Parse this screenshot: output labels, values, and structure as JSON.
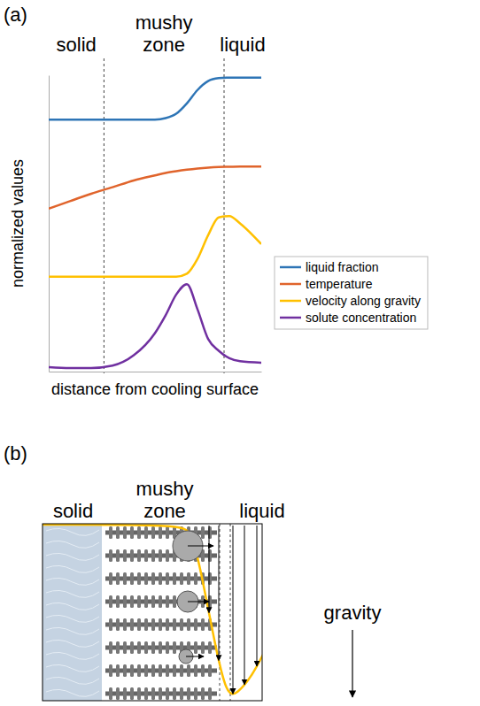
{
  "chart_data": {
    "type": "line",
    "panel_label": "(a)",
    "zones": [
      "solid",
      "mushy zone",
      "liquid"
    ],
    "zone_bounds": [
      2.6,
      8.25
    ],
    "x_label": "distance from cooling surface",
    "y_label": "normalized values",
    "x": [
      0,
      1,
      2,
      3,
      4,
      5,
      5.5,
      6,
      6.5,
      7,
      7.5,
      8,
      8.5,
      9,
      10
    ],
    "series": [
      {
        "name": "liquid fraction",
        "color": "#2e75b6",
        "values": [
          8.5,
          8.5,
          8.5,
          8.5,
          8.5,
          8.5,
          8.55,
          8.7,
          9.05,
          9.5,
          9.8,
          9.9,
          9.92,
          9.92,
          9.92
        ]
      },
      {
        "name": "temperature",
        "color": "#e0642c",
        "values": [
          5.5,
          5.75,
          6.0,
          6.22,
          6.45,
          6.62,
          6.7,
          6.76,
          6.81,
          6.85,
          6.88,
          6.9,
          6.91,
          6.92,
          6.92
        ]
      },
      {
        "name": "velocity along gravity",
        "color": "#ffc000",
        "values": [
          3.2,
          3.2,
          3.2,
          3.2,
          3.2,
          3.2,
          3.2,
          3.2,
          3.3,
          3.8,
          4.6,
          5.2,
          5.25,
          5.0,
          4.3
        ]
      },
      {
        "name": "solute concentration",
        "color": "#7030a0",
        "values": [
          0.15,
          0.12,
          0.12,
          0.2,
          0.55,
          1.3,
          1.9,
          2.6,
          2.95,
          2.1,
          1.1,
          0.7,
          0.45,
          0.35,
          0.3
        ]
      }
    ],
    "xlim": [
      0,
      10
    ],
    "ylim": [
      0,
      10
    ],
    "tick_labels": false,
    "legend": "right"
  },
  "diagram": {
    "panel_label": "(b)",
    "zones": [
      "solid",
      "mushy zone",
      "liquid"
    ],
    "arrow_label": "gravity"
  }
}
